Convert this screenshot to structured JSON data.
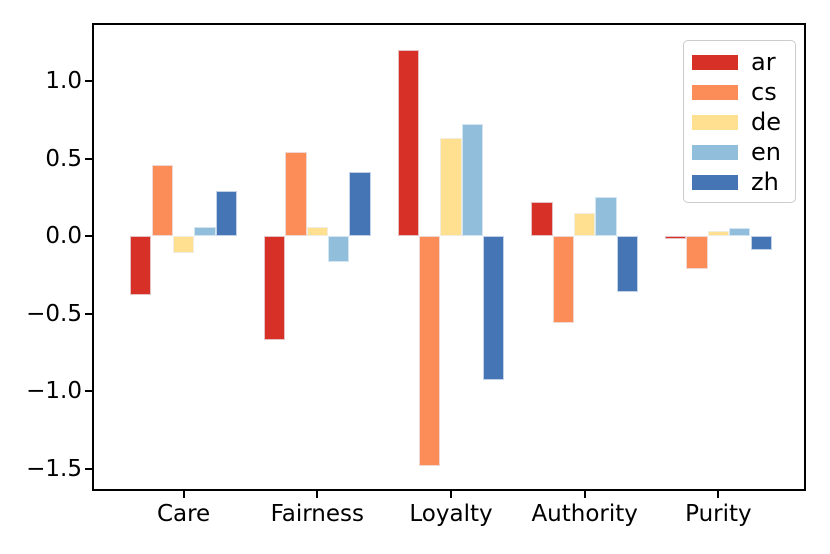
{
  "chart_data": {
    "type": "bar",
    "title": "",
    "xlabel": "",
    "ylabel": "",
    "categories": [
      "Care",
      "Fairness",
      "Loyalty",
      "Authority",
      "Purity"
    ],
    "series": [
      {
        "name": "ar",
        "color": "#d73027",
        "values": [
          -0.38,
          -0.67,
          1.2,
          0.22,
          -0.02
        ]
      },
      {
        "name": "cs",
        "color": "#fc8d59",
        "values": [
          0.46,
          0.54,
          -1.48,
          -0.56,
          -0.21
        ]
      },
      {
        "name": "de",
        "color": "#fee090",
        "values": [
          -0.11,
          0.06,
          0.63,
          0.15,
          0.03
        ]
      },
      {
        "name": "en",
        "color": "#91bfdb",
        "values": [
          0.06,
          -0.17,
          0.72,
          0.25,
          0.05
        ]
      },
      {
        "name": "zh",
        "color": "#4575b4",
        "values": [
          0.29,
          0.41,
          -0.93,
          -0.36,
          -0.09
        ]
      }
    ],
    "yticks": [
      1.0,
      0.5,
      0.0,
      -0.5,
      -1.0,
      -1.5
    ],
    "ytick_labels": [
      "1.0",
      "0.5",
      "0.0",
      "−0.5",
      "−1.0",
      "−1.5"
    ],
    "ylim": [
      -1.63,
      1.36
    ],
    "xlim": [
      -0.67,
      4.64
    ],
    "bar_group_width": 0.8,
    "grid": false,
    "legend_position": "upper right",
    "legend_entries": [
      "ar",
      "cs",
      "de",
      "en",
      "zh"
    ],
    "spine_color": "#000000",
    "background_color": "#ffffff"
  }
}
